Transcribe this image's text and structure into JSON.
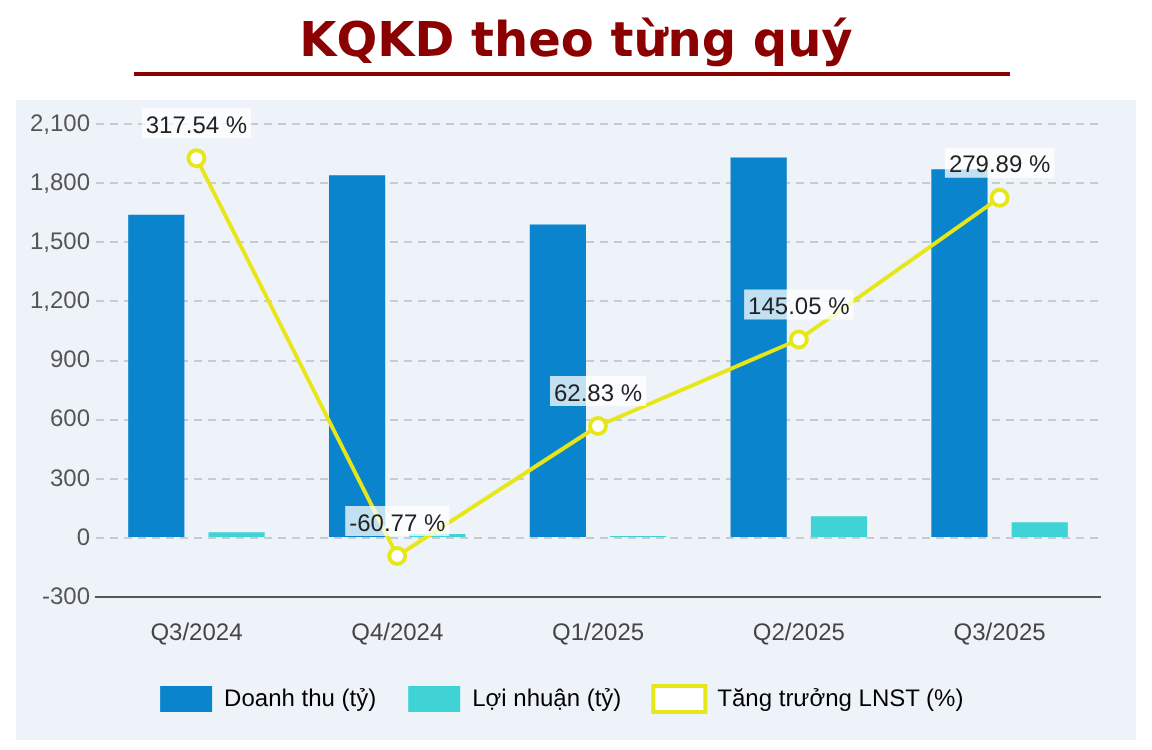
{
  "chart_data": {
    "type": "bar",
    "title": "KQKD theo từng quý",
    "categories": [
      "Q3/2024",
      "Q4/2024",
      "Q1/2025",
      "Q2/2025",
      "Q3/2025"
    ],
    "series": [
      {
        "name": "Doanh thu (tỷ)",
        "color": "#0a84cc",
        "values": [
          1640,
          1840,
          1590,
          1930,
          1870
        ]
      },
      {
        "name": "Lợi nhuận (tỷ)",
        "color": "#3fd3d6",
        "values": [
          30,
          20,
          10,
          110,
          80
        ]
      },
      {
        "name": "Tăng trưởng LNST (%)",
        "type": "line",
        "axis": "y2",
        "color": "#e6e619",
        "values": [
          317.54,
          -60.77,
          62.83,
          145.05,
          279.89
        ],
        "value_labels": [
          "317.54 %",
          "-60.77 %",
          "62.83 %",
          "145.05 %",
          "279.89 %"
        ]
      }
    ],
    "ylim": [
      -300,
      2100
    ],
    "yticks": [
      -300,
      0,
      300,
      600,
      900,
      {
        "value": 1200,
        "label": "1,200"
      },
      {
        "value": 1500,
        "label": "1,500"
      },
      {
        "value": 1800,
        "label": "1,800"
      },
      {
        "value": 2100,
        "label": "2,100"
      }
    ],
    "grid": "y",
    "legend": "bottom",
    "marker": "circle"
  }
}
